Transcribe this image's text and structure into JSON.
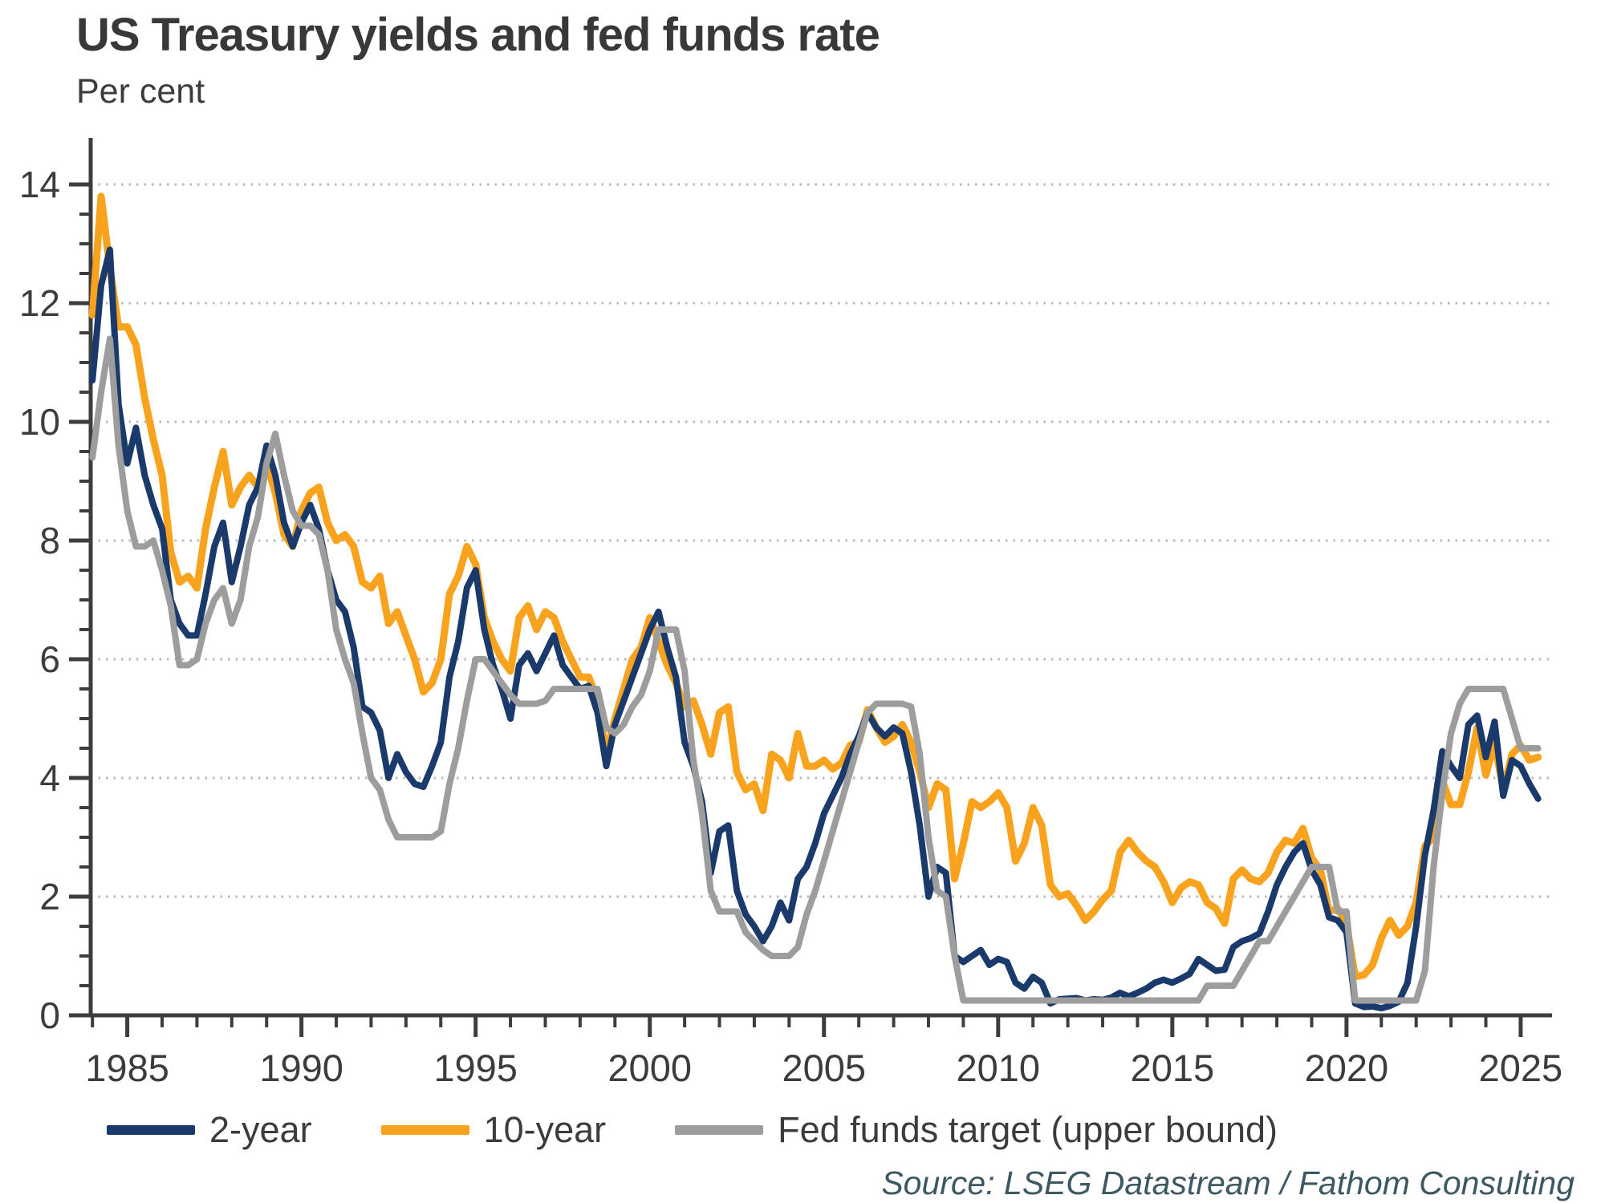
{
  "header": {
    "title": "US Treasury yields and fed funds rate",
    "subtitle": "Per cent"
  },
  "source": "Source: LSEG Datastream / Fathom Consulting",
  "colors": {
    "two_year": "#1A3A6B",
    "ten_year": "#F9A21D",
    "fed_funds": "#9D9D9D",
    "axis": "#3d3d3d",
    "gridline": "#b9b9b9",
    "text": "#3c3c3c",
    "source_text": "#3c5862"
  },
  "legend": {
    "items": [
      {
        "label": "2-year",
        "color": "#1A3A6B"
      },
      {
        "label": "10-year",
        "color": "#F9A21D"
      },
      {
        "label": "Fed funds target (upper bound)",
        "color": "#9D9D9D"
      }
    ]
  },
  "chart_data": {
    "type": "line",
    "title": "US Treasury yields and fed funds rate",
    "xlabel": "",
    "ylabel": "Per cent",
    "grid": "horizontal-dotted",
    "legend_position": "bottom",
    "x_start": 1984.0,
    "x_step": 0.25,
    "x_axis": {
      "min": 1983.95,
      "max": 2025.9,
      "tick_labels": [
        1985,
        1990,
        1995,
        2000,
        2005,
        2010,
        2015,
        2020,
        2025
      ],
      "minor_step": 1
    },
    "y_axis": {
      "min": 0,
      "max": 14,
      "tick_labels": [
        0,
        2,
        4,
        6,
        8,
        10,
        12,
        14
      ],
      "minor_step": 0.5
    },
    "draw_order": [
      1,
      0,
      2
    ],
    "series": [
      {
        "name": "2-year",
        "color": "#1A3A6B",
        "width": 8,
        "values": [
          10.7,
          12.3,
          12.9,
          10.3,
          9.3,
          9.9,
          9.1,
          8.6,
          8.2,
          7.0,
          6.6,
          6.4,
          6.4,
          7.1,
          7.9,
          8.3,
          7.3,
          7.9,
          8.6,
          8.9,
          9.6,
          9.1,
          8.3,
          7.9,
          8.3,
          8.6,
          8.2,
          7.5,
          7.0,
          6.8,
          6.2,
          5.2,
          5.1,
          4.8,
          4.0,
          4.4,
          4.1,
          3.9,
          3.85,
          4.2,
          4.6,
          5.7,
          6.3,
          7.2,
          7.5,
          6.5,
          5.9,
          5.5,
          5.0,
          5.9,
          6.1,
          5.8,
          6.1,
          6.4,
          5.9,
          5.7,
          5.5,
          5.55,
          5.1,
          4.2,
          4.9,
          5.3,
          5.7,
          6.1,
          6.5,
          6.8,
          6.2,
          5.7,
          4.6,
          4.2,
          3.6,
          2.4,
          3.1,
          3.2,
          2.1,
          1.7,
          1.5,
          1.25,
          1.5,
          1.9,
          1.6,
          2.3,
          2.5,
          2.9,
          3.4,
          3.7,
          4.0,
          4.4,
          4.7,
          5.1,
          4.85,
          4.7,
          4.85,
          4.75,
          4.1,
          3.2,
          2.0,
          2.5,
          2.4,
          1.0,
          0.9,
          1.0,
          1.1,
          0.85,
          0.95,
          0.9,
          0.55,
          0.45,
          0.65,
          0.55,
          0.2,
          0.27,
          0.28,
          0.29,
          0.25,
          0.27,
          0.26,
          0.3,
          0.38,
          0.32,
          0.38,
          0.45,
          0.55,
          0.6,
          0.55,
          0.62,
          0.7,
          0.95,
          0.85,
          0.75,
          0.77,
          1.15,
          1.25,
          1.3,
          1.38,
          1.75,
          2.2,
          2.5,
          2.75,
          2.9,
          2.45,
          2.2,
          1.65,
          1.6,
          1.4,
          0.2,
          0.14,
          0.15,
          0.12,
          0.16,
          0.23,
          0.55,
          1.5,
          2.7,
          3.45,
          4.45,
          4.2,
          4.0,
          4.9,
          5.05,
          4.35,
          4.95,
          3.7,
          4.3,
          4.2,
          3.9,
          3.65
        ]
      },
      {
        "name": "10-year",
        "color": "#F9A21D",
        "width": 9,
        "values": [
          11.8,
          13.8,
          12.6,
          11.6,
          11.6,
          11.3,
          10.4,
          9.7,
          9.1,
          7.8,
          7.3,
          7.4,
          7.2,
          8.2,
          8.9,
          9.5,
          8.6,
          8.9,
          9.1,
          8.9,
          9.3,
          8.8,
          8.1,
          7.9,
          8.5,
          8.8,
          8.9,
          8.3,
          8.0,
          8.1,
          7.9,
          7.3,
          7.2,
          7.4,
          6.6,
          6.8,
          6.4,
          6.0,
          5.45,
          5.6,
          6.0,
          7.1,
          7.4,
          7.9,
          7.6,
          6.7,
          6.3,
          6.0,
          5.8,
          6.7,
          6.9,
          6.5,
          6.8,
          6.7,
          6.3,
          6.0,
          5.7,
          5.7,
          5.3,
          4.4,
          5.0,
          5.5,
          6.0,
          6.2,
          6.7,
          6.3,
          5.9,
          5.6,
          5.2,
          5.3,
          4.9,
          4.4,
          5.1,
          5.2,
          4.1,
          3.8,
          3.9,
          3.45,
          4.4,
          4.3,
          4.0,
          4.75,
          4.2,
          4.2,
          4.3,
          4.15,
          4.25,
          4.55,
          4.6,
          5.15,
          4.85,
          4.6,
          4.7,
          4.9,
          4.6,
          4.1,
          3.5,
          3.9,
          3.8,
          2.3,
          2.9,
          3.6,
          3.5,
          3.6,
          3.75,
          3.5,
          2.6,
          2.9,
          3.5,
          3.2,
          2.2,
          2.0,
          2.05,
          1.85,
          1.6,
          1.75,
          1.95,
          2.1,
          2.75,
          2.95,
          2.75,
          2.6,
          2.5,
          2.25,
          1.9,
          2.15,
          2.25,
          2.2,
          1.9,
          1.8,
          1.55,
          2.3,
          2.45,
          2.3,
          2.25,
          2.4,
          2.75,
          2.95,
          2.9,
          3.15,
          2.65,
          2.45,
          1.75,
          1.8,
          1.55,
          0.65,
          0.68,
          0.85,
          1.3,
          1.6,
          1.35,
          1.5,
          1.9,
          2.85,
          3.0,
          3.95,
          3.55,
          3.55,
          4.1,
          4.85,
          4.05,
          4.6,
          3.8,
          4.4,
          4.55,
          4.3,
          4.35
        ]
      },
      {
        "name": "Fed funds target (upper bound)",
        "color": "#9D9D9D",
        "width": 8,
        "values": [
          9.4,
          10.5,
          11.4,
          9.6,
          8.5,
          7.9,
          7.9,
          8.0,
          7.5,
          6.9,
          5.9,
          5.9,
          6.0,
          6.6,
          7.0,
          7.2,
          6.6,
          7.0,
          7.9,
          8.4,
          9.3,
          9.8,
          9.1,
          8.5,
          8.25,
          8.25,
          8.1,
          7.5,
          6.5,
          6.0,
          5.6,
          4.75,
          4.0,
          3.8,
          3.3,
          3.0,
          3.0,
          3.0,
          3.0,
          3.0,
          3.1,
          3.9,
          4.5,
          5.3,
          6.0,
          6.0,
          5.8,
          5.6,
          5.4,
          5.25,
          5.25,
          5.25,
          5.3,
          5.5,
          5.5,
          5.5,
          5.5,
          5.5,
          5.5,
          4.85,
          4.75,
          4.9,
          5.2,
          5.4,
          5.8,
          6.5,
          6.5,
          6.5,
          5.8,
          4.3,
          3.4,
          2.1,
          1.75,
          1.75,
          1.75,
          1.4,
          1.25,
          1.1,
          1.0,
          1.0,
          1.0,
          1.15,
          1.7,
          2.1,
          2.6,
          3.1,
          3.6,
          4.1,
          4.6,
          5.1,
          5.25,
          5.25,
          5.25,
          5.25,
          5.2,
          4.4,
          3.0,
          2.1,
          2.0,
          1.0,
          0.25,
          0.25,
          0.25,
          0.25,
          0.25,
          0.25,
          0.25,
          0.25,
          0.25,
          0.25,
          0.25,
          0.25,
          0.25,
          0.25,
          0.25,
          0.25,
          0.25,
          0.25,
          0.25,
          0.25,
          0.25,
          0.25,
          0.25,
          0.25,
          0.25,
          0.25,
          0.25,
          0.25,
          0.5,
          0.5,
          0.5,
          0.5,
          0.75,
          1.0,
          1.25,
          1.25,
          1.5,
          1.75,
          2.0,
          2.25,
          2.5,
          2.5,
          2.5,
          1.75,
          1.75,
          0.25,
          0.25,
          0.25,
          0.25,
          0.25,
          0.25,
          0.25,
          0.25,
          0.75,
          2.5,
          3.75,
          4.75,
          5.25,
          5.5,
          5.5,
          5.5,
          5.5,
          5.5,
          5.0,
          4.5,
          4.5,
          4.5
        ]
      }
    ]
  }
}
